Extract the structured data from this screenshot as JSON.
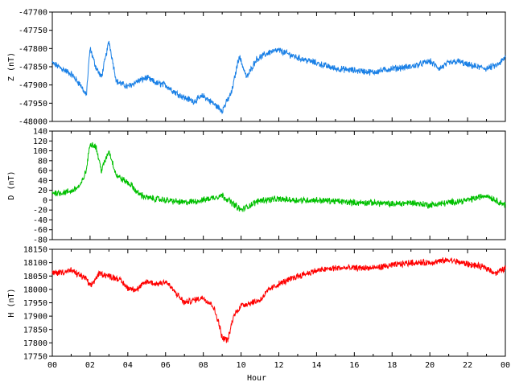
{
  "chart_data": [
    {
      "type": "line",
      "ylabel": "Z (nT)",
      "ylim": [
        -48000,
        -47700
      ],
      "yticks": [
        -47700,
        -47750,
        -47800,
        -47850,
        -47900,
        -47950,
        -48000
      ],
      "color": "#1a80e6",
      "series": [
        {
          "points": [
            [
              0,
              -47840
            ],
            [
              0.5,
              -47855
            ],
            [
              1.0,
              -47870
            ],
            [
              1.5,
              -47900
            ],
            [
              1.8,
              -47930
            ],
            [
              2.0,
              -47800
            ],
            [
              2.3,
              -47850
            ],
            [
              2.6,
              -47880
            ],
            [
              3.0,
              -47780
            ],
            [
              3.4,
              -47890
            ],
            [
              4.0,
              -47905
            ],
            [
              4.5,
              -47890
            ],
            [
              5.0,
              -47880
            ],
            [
              5.5,
              -47895
            ],
            [
              6.0,
              -47900
            ],
            [
              6.5,
              -47920
            ],
            [
              7.0,
              -47935
            ],
            [
              7.5,
              -47945
            ],
            [
              8.0,
              -47930
            ],
            [
              8.5,
              -47950
            ],
            [
              9.0,
              -47970
            ],
            [
              9.5,
              -47920
            ],
            [
              9.9,
              -47820
            ],
            [
              10.3,
              -47880
            ],
            [
              10.8,
              -47830
            ],
            [
              11.5,
              -47810
            ],
            [
              12.0,
              -47805
            ],
            [
              13.0,
              -47825
            ],
            [
              14.0,
              -47840
            ],
            [
              15.0,
              -47855
            ],
            [
              16.0,
              -47860
            ],
            [
              17.0,
              -47865
            ],
            [
              18.0,
              -47855
            ],
            [
              19.0,
              -47850
            ],
            [
              20.0,
              -47835
            ],
            [
              20.5,
              -47855
            ],
            [
              21.0,
              -47840
            ],
            [
              21.5,
              -47835
            ],
            [
              22.0,
              -47845
            ],
            [
              23.0,
              -47855
            ],
            [
              23.6,
              -47845
            ],
            [
              24.0,
              -47825
            ]
          ]
        }
      ]
    },
    {
      "type": "line",
      "ylabel": "D (nT)",
      "ylim": [
        -80,
        140
      ],
      "yticks": [
        140,
        120,
        100,
        80,
        60,
        40,
        20,
        0,
        -20,
        -40,
        -60,
        -80
      ],
      "color": "#00c000",
      "series": [
        {
          "points": [
            [
              0,
              15
            ],
            [
              0.5,
              15
            ],
            [
              1.0,
              18
            ],
            [
              1.5,
              30
            ],
            [
              1.8,
              60
            ],
            [
              2.0,
              115
            ],
            [
              2.3,
              110
            ],
            [
              2.6,
              60
            ],
            [
              3.0,
              100
            ],
            [
              3.4,
              50
            ],
            [
              3.8,
              40
            ],
            [
              4.2,
              30
            ],
            [
              4.5,
              15
            ],
            [
              5.0,
              5
            ],
            [
              6.0,
              0
            ],
            [
              7.0,
              -5
            ],
            [
              8.0,
              0
            ],
            [
              8.5,
              5
            ],
            [
              9.0,
              10
            ],
            [
              9.5,
              -5
            ],
            [
              10.0,
              -20
            ],
            [
              10.5,
              -10
            ],
            [
              11.0,
              0
            ],
            [
              12.0,
              2
            ],
            [
              13.0,
              0
            ],
            [
              14.0,
              0
            ],
            [
              15.0,
              -2
            ],
            [
              16.0,
              -5
            ],
            [
              17.0,
              -5
            ],
            [
              18.0,
              -8
            ],
            [
              19.0,
              -5
            ],
            [
              20.0,
              -10
            ],
            [
              21.0,
              -5
            ],
            [
              22.0,
              0
            ],
            [
              23.0,
              10
            ],
            [
              23.5,
              0
            ],
            [
              24.0,
              -10
            ]
          ]
        }
      ]
    },
    {
      "type": "line",
      "ylabel": "H (nT)",
      "ylim": [
        17750,
        18150
      ],
      "yticks": [
        18150,
        18100,
        18050,
        18000,
        17950,
        17900,
        17850,
        17800,
        17750
      ],
      "color": "#ff0000",
      "series": [
        {
          "points": [
            [
              0,
              18060
            ],
            [
              1.0,
              18070
            ],
            [
              1.8,
              18040
            ],
            [
              2.0,
              18010
            ],
            [
              2.5,
              18060
            ],
            [
              3.0,
              18050
            ],
            [
              3.5,
              18040
            ],
            [
              4.0,
              18005
            ],
            [
              4.5,
              18000
            ],
            [
              5.0,
              18030
            ],
            [
              5.5,
              18020
            ],
            [
              6.0,
              18030
            ],
            [
              6.5,
              17990
            ],
            [
              7.0,
              17950
            ],
            [
              7.5,
              17960
            ],
            [
              8.0,
              17970
            ],
            [
              8.5,
              17940
            ],
            [
              8.8,
              17880
            ],
            [
              9.0,
              17820
            ],
            [
              9.3,
              17810
            ],
            [
              9.6,
              17900
            ],
            [
              10.0,
              17940
            ],
            [
              10.5,
              17950
            ],
            [
              11.0,
              17960
            ],
            [
              11.5,
              18000
            ],
            [
              12.0,
              18020
            ],
            [
              13.0,
              18050
            ],
            [
              14.0,
              18070
            ],
            [
              15.0,
              18080
            ],
            [
              16.0,
              18080
            ],
            [
              17.0,
              18080
            ],
            [
              18.0,
              18090
            ],
            [
              19.0,
              18100
            ],
            [
              20.0,
              18100
            ],
            [
              21.0,
              18110
            ],
            [
              22.0,
              18095
            ],
            [
              23.0,
              18080
            ],
            [
              23.5,
              18060
            ],
            [
              24.0,
              18080
            ]
          ]
        }
      ]
    }
  ],
  "x_axis": {
    "label": "Hour",
    "range": [
      0,
      24
    ],
    "tick_labels": [
      "00",
      "02",
      "04",
      "06",
      "08",
      "10",
      "12",
      "14",
      "16",
      "18",
      "20",
      "22",
      "00"
    ]
  }
}
